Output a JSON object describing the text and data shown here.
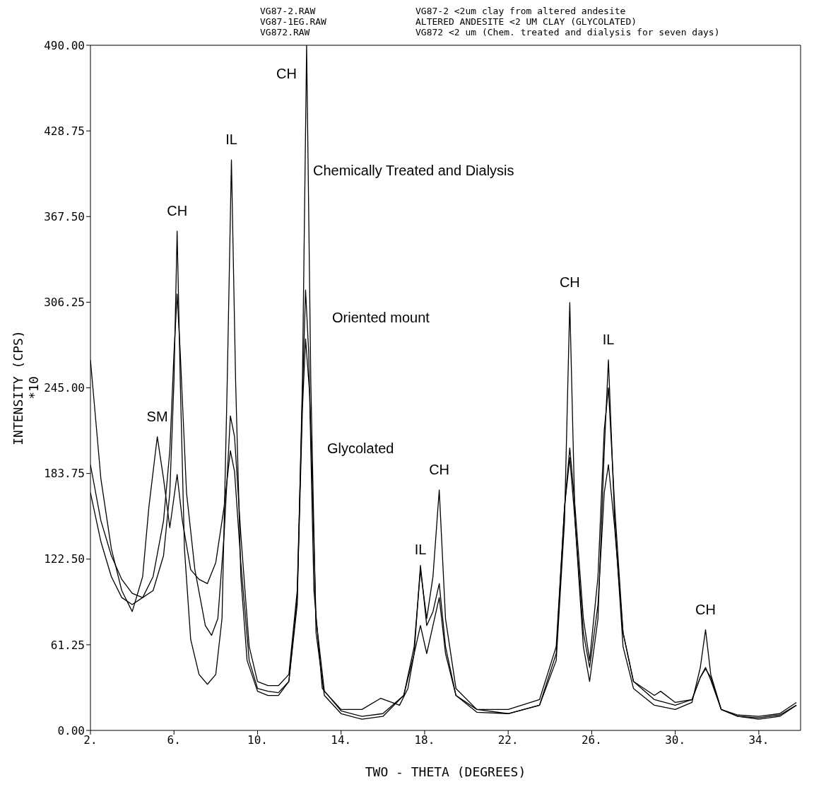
{
  "chart_data": {
    "type": "line",
    "xlabel": "TWO - THETA   (DEGREES)",
    "ylabel": "INTENSITY (CPS)\n*10",
    "xlim": [
      2,
      36
    ],
    "xticks": [
      {
        "value": 2,
        "label": "2."
      },
      {
        "value": 6,
        "label": "6."
      },
      {
        "value": 10,
        "label": "10."
      },
      {
        "value": 14,
        "label": "14."
      },
      {
        "value": 18,
        "label": "18."
      },
      {
        "value": 22,
        "label": "22."
      },
      {
        "value": 26,
        "label": "26."
      },
      {
        "value": 30,
        "label": "30."
      },
      {
        "value": 34,
        "label": "34."
      }
    ],
    "ylim": [
      0,
      490
    ],
    "yticks": [
      {
        "value": 0,
        "label": "0.00"
      },
      {
        "value": 61.25,
        "label": "61.25"
      },
      {
        "value": 122.5,
        "label": "122.50"
      },
      {
        "value": 183.75,
        "label": "183.75"
      },
      {
        "value": 245,
        "label": "245.00"
      },
      {
        "value": 306.25,
        "label": "306.25"
      },
      {
        "value": 367.5,
        "label": "367.50"
      },
      {
        "value": 428.75,
        "label": "428.75"
      },
      {
        "value": 490,
        "label": "490.00"
      }
    ],
    "grid": false,
    "legend": false,
    "marker": "none",
    "line_style": "solid",
    "series": [
      {
        "color": "#000000",
        "x": [
          2,
          2.5,
          3,
          3.5,
          4,
          4.5,
          5,
          5.5,
          5.8,
          6.0,
          6.15,
          6.3,
          6.5,
          6.8,
          7.2,
          7.6,
          8.0,
          8.3,
          8.55,
          8.75,
          8.95,
          9.2,
          9.5,
          10,
          10.5,
          11,
          11.5,
          11.9,
          12.15,
          12.35,
          12.55,
          12.8,
          13.2,
          14,
          15,
          16,
          17,
          17.5,
          17.8,
          18.1,
          18.4,
          18.7,
          19,
          19.5,
          20.5,
          22,
          23.5,
          24.3,
          24.7,
          24.95,
          25.2,
          25.6,
          25.9,
          26.3,
          26.6,
          26.8,
          27.1,
          27.5,
          28,
          29,
          30,
          30.8,
          31.2,
          31.45,
          31.7,
          32.2,
          33,
          34,
          35,
          35.8
        ],
        "values": [
          190,
          150,
          125,
          108,
          98,
          95,
          100,
          125,
          170,
          250,
          357,
          250,
          130,
          65,
          40,
          33,
          40,
          80,
          250,
          408,
          250,
          110,
          50,
          28,
          25,
          25,
          35,
          90,
          250,
          490,
          250,
          70,
          25,
          12,
          8,
          10,
          25,
          60,
          115,
          80,
          110,
          172,
          80,
          30,
          15,
          12,
          18,
          50,
          150,
          306,
          150,
          60,
          35,
          80,
          200,
          265,
          150,
          60,
          30,
          18,
          15,
          20,
          45,
          72,
          40,
          15,
          10,
          8,
          10,
          18
        ]
      },
      {
        "color": "#000000",
        "x": [
          2,
          2.5,
          3,
          3.5,
          4,
          4.5,
          5,
          5.5,
          5.8,
          6.0,
          6.15,
          6.3,
          6.6,
          7,
          7.5,
          7.8,
          8.1,
          8.4,
          8.7,
          8.9,
          9.2,
          9.6,
          10,
          10.5,
          11,
          11.5,
          11.9,
          12.15,
          12.3,
          12.45,
          12.7,
          13.1,
          14,
          15,
          16,
          17,
          17.5,
          17.8,
          18.1,
          18.4,
          18.7,
          19,
          19.5,
          20.5,
          22,
          23.5,
          24.3,
          24.7,
          24.95,
          25.2,
          25.6,
          25.9,
          26.3,
          26.6,
          26.8,
          27.1,
          27.5,
          28,
          29,
          30,
          30.8,
          31.2,
          31.45,
          31.7,
          32.2,
          33,
          34,
          35,
          35.8
        ],
        "values": [
          170,
          135,
          110,
          95,
          90,
          95,
          110,
          150,
          200,
          270,
          312,
          270,
          170,
          115,
          75,
          68,
          80,
          140,
          225,
          210,
          140,
          60,
          35,
          32,
          32,
          40,
          100,
          240,
          315,
          270,
          100,
          30,
          14,
          10,
          12,
          25,
          55,
          118,
          75,
          85,
          105,
          60,
          25,
          13,
          12,
          18,
          55,
          160,
          202,
          160,
          80,
          50,
          110,
          215,
          245,
          160,
          70,
          35,
          22,
          18,
          22,
          38,
          44,
          38,
          15,
          10,
          9,
          11,
          18
        ]
      },
      {
        "color": "#000000",
        "x": [
          2,
          2.5,
          3,
          3.5,
          4,
          4.5,
          4.8,
          5.2,
          5.5,
          5.8,
          6.15,
          6.4,
          6.8,
          7.2,
          7.6,
          8.0,
          8.4,
          8.7,
          8.9,
          9.2,
          9.6,
          10,
          10.5,
          11,
          11.5,
          11.9,
          12.15,
          12.3,
          12.5,
          12.8,
          13.2,
          14,
          15,
          15.9,
          16.8,
          17.2,
          17.5,
          17.8,
          18.1,
          18.4,
          18.7,
          19,
          19.5,
          20.5,
          22,
          23.5,
          24.3,
          24.7,
          24.95,
          25.2,
          25.6,
          25.9,
          26.3,
          26.6,
          26.8,
          27.1,
          27.5,
          28,
          29,
          29.3,
          30,
          30.8,
          31.2,
          31.45,
          31.7,
          32.2,
          33,
          34,
          35,
          35.8
        ],
        "values": [
          265,
          180,
          130,
          100,
          85,
          110,
          160,
          210,
          180,
          145,
          183,
          150,
          115,
          108,
          105,
          120,
          160,
          200,
          185,
          120,
          50,
          30,
          28,
          27,
          35,
          95,
          230,
          280,
          240,
          80,
          28,
          15,
          15,
          23,
          18,
          30,
          55,
          75,
          55,
          75,
          95,
          55,
          25,
          15,
          15,
          22,
          60,
          160,
          195,
          150,
          70,
          45,
          90,
          170,
          190,
          145,
          70,
          35,
          25,
          28,
          20,
          22,
          38,
          45,
          36,
          15,
          11,
          10,
          12,
          20
        ]
      }
    ],
    "annotations": [
      "VG87-2.RAW",
      "VG87-2 <2um clay from altered andesite",
      "VG87-1EG.RAW",
      "ALTERED ANDESITE <2 UM CLAY (GLYCOLATED)",
      "VG872.RAW",
      "VG872 <2 um (Chem. treated and dialysis for seven days)",
      "Chemically Treated and Dialysis",
      "Oriented mount",
      "Glycolated",
      {
        "text": "SM",
        "x": 5.2,
        "y": 210
      },
      {
        "text": "CH",
        "x": 6.15,
        "y": 357
      },
      {
        "text": "IL",
        "x": 8.75,
        "y": 408
      },
      {
        "text": "CH",
        "x": 12.35,
        "y": 490
      },
      {
        "text": "IL",
        "x": 17.8,
        "y": 115
      },
      {
        "text": "CH",
        "x": 18.7,
        "y": 172
      },
      {
        "text": "CH",
        "x": 24.95,
        "y": 306
      },
      {
        "text": "IL",
        "x": 26.8,
        "y": 265
      },
      {
        "text": "CH",
        "x": 31.45,
        "y": 72
      }
    ]
  }
}
